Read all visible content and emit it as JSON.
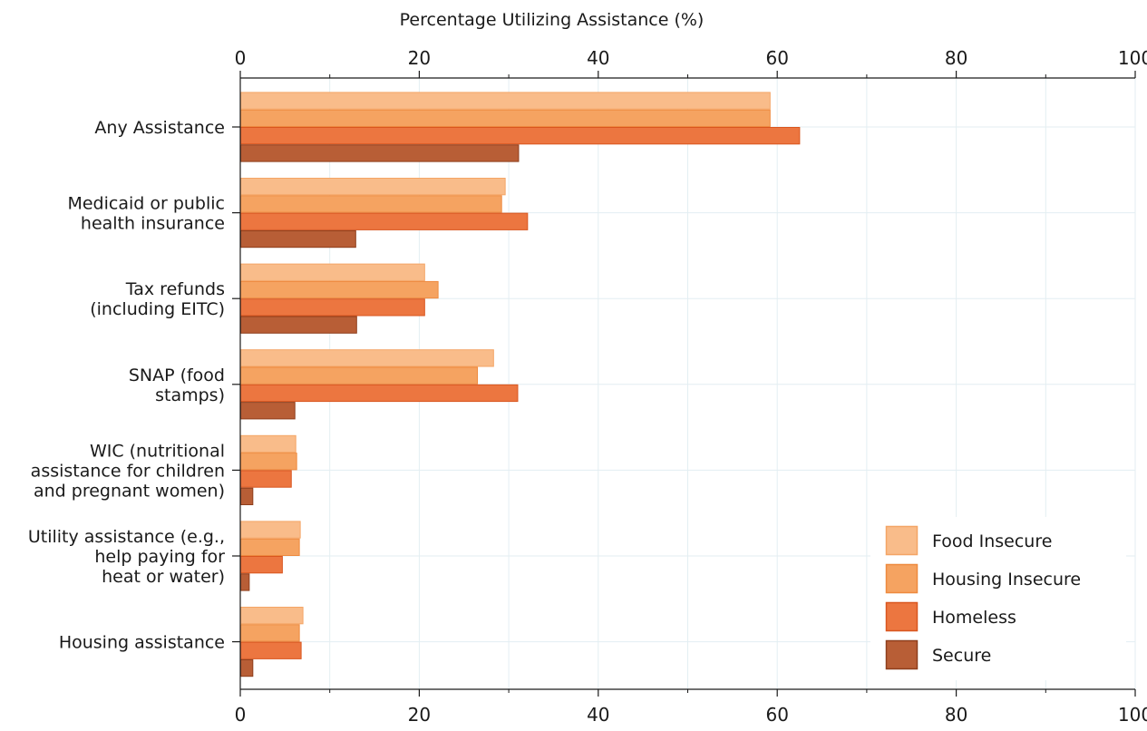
{
  "chart_data": {
    "type": "bar",
    "orientation": "horizontal",
    "title": "",
    "xlabel": "Percentage Utilizing Assistance (%)",
    "ylabel": "",
    "xlim": [
      0,
      100
    ],
    "x_ticks": [
      0,
      20,
      40,
      60,
      80,
      100
    ],
    "x_minor_ticks": [
      10,
      30,
      50,
      70,
      90
    ],
    "grid": true,
    "legend_position": "bottom-right",
    "categories": [
      [
        "Any Assistance"
      ],
      [
        "Medicaid or public",
        "health insurance"
      ],
      [
        "Tax refunds",
        "(including EITC)"
      ],
      [
        "SNAP (food",
        "stamps)"
      ],
      [
        "WIC (nutritional",
        "assistance for children",
        "and pregnant women)"
      ],
      [
        "Utility assistance (e.g.,",
        "help paying for",
        "heat or water)"
      ],
      [
        "Housing assistance"
      ]
    ],
    "series": [
      {
        "name": "Food Insecure",
        "color": "#F9BC8A",
        "edge": "#F4A566",
        "values": [
          59.2,
          29.6,
          20.6,
          28.3,
          6.2,
          6.7,
          7.0
        ]
      },
      {
        "name": "Housing Insecure",
        "color": "#F5A361",
        "edge": "#EE8A3F",
        "values": [
          59.2,
          29.2,
          22.1,
          26.5,
          6.3,
          6.6,
          6.6
        ]
      },
      {
        "name": "Homeless",
        "color": "#EC7640",
        "edge": "#D9561F",
        "values": [
          62.5,
          32.1,
          20.6,
          31.0,
          5.7,
          4.7,
          6.8
        ]
      },
      {
        "name": "Secure",
        "color": "#B85E36",
        "edge": "#8E3E1C",
        "values": [
          31.1,
          12.9,
          13.0,
          6.1,
          1.4,
          1.0,
          1.4
        ]
      }
    ]
  }
}
